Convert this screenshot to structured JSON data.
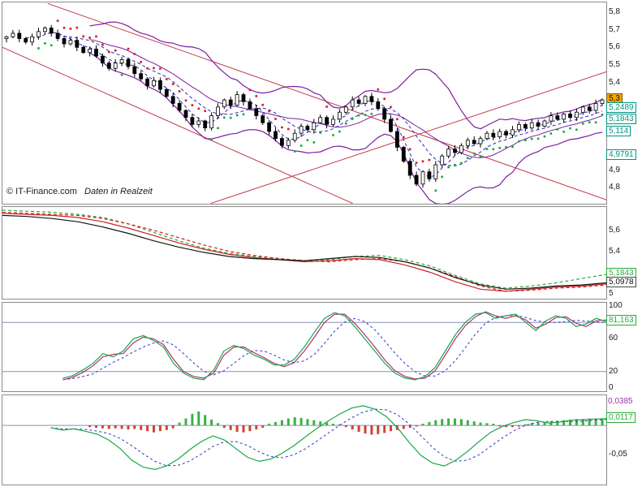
{
  "meta": {
    "copyright": "© IT-Finance.com",
    "realtime_note": "Daten in Realzeit"
  },
  "colors": {
    "grid": "#8890b8",
    "trend": "#c23b4b",
    "bollinger": "#7d1fa0",
    "ma_dash": "#2b2bb8",
    "sar_up": "#17a82f",
    "sar_down": "#e01717",
    "p2_red": "#cc2222",
    "p2_green": "#2aaa3a",
    "p2_black": "#151515",
    "stoch_green": "#17a84a",
    "stoch_purple": "#b23070",
    "signal": "#3535c8",
    "macd_line": "#17a84a",
    "hist_pos": "#3cb043",
    "hist_neg": "#cc4433",
    "box_teal": "#009482",
    "box_orange": "#f5a800",
    "box_green": "#2aaa3a",
    "purple_text": "#9b30b0"
  },
  "chart_data": [
    {
      "panel": "price",
      "type": "candlestick",
      "ylim": [
        4.708,
        5.856
      ],
      "yticks": [
        {
          "v": 5.8,
          "label": "5,8"
        },
        {
          "v": 5.7,
          "label": "5,7"
        },
        {
          "v": 5.6,
          "label": "5,6"
        },
        {
          "v": 5.5,
          "label": "5,5"
        },
        {
          "v": 5.4,
          "label": "5,4"
        },
        {
          "v": 4.9,
          "label": "4,9"
        },
        {
          "v": 4.8,
          "label": "4,8"
        }
      ],
      "boxed_labels": [
        {
          "v": 5.3,
          "label": "5,3",
          "style": "price"
        },
        {
          "v": 5.2489,
          "label": "5,2489",
          "style": "teal"
        },
        {
          "v": 5.1843,
          "label": "5,1843",
          "style": "teal"
        },
        {
          "v": 5.114,
          "label": "5,114",
          "style": "teal"
        },
        {
          "v": 4.9791,
          "label": "4,9791",
          "style": "teal"
        }
      ],
      "close": [
        5.66,
        5.68,
        5.65,
        5.63,
        5.66,
        5.69,
        5.71,
        5.68,
        5.65,
        5.62,
        5.64,
        5.6,
        5.57,
        5.59,
        5.55,
        5.51,
        5.48,
        5.51,
        5.53,
        5.49,
        5.45,
        5.42,
        5.38,
        5.41,
        5.36,
        5.32,
        5.28,
        5.24,
        5.2,
        5.16,
        5.18,
        5.14,
        5.21,
        5.26,
        5.3,
        5.27,
        5.33,
        5.29,
        5.25,
        5.21,
        5.17,
        5.12,
        5.08,
        5.04,
        5.07,
        5.11,
        5.15,
        5.13,
        5.17,
        5.2,
        5.16,
        5.19,
        5.23,
        5.26,
        5.3,
        5.28,
        5.32,
        5.29,
        5.25,
        5.19,
        5.12,
        5.03,
        4.95,
        4.87,
        4.82,
        4.89,
        4.85,
        4.93,
        4.98,
        5.02,
        5.0,
        5.04,
        5.07,
        5.05,
        5.08,
        5.11,
        5.09,
        5.12,
        5.1,
        5.13,
        5.16,
        5.14,
        5.17,
        5.15,
        5.18,
        5.21,
        5.19,
        5.22,
        5.2,
        5.23,
        5.26,
        5.24,
        5.28,
        5.3
      ],
      "indicators": {
        "bollinger_period": 14,
        "bollinger_mult": 2,
        "ma_dashed_periods": [
          4,
          9
        ],
        "parabolic_sar": true
      },
      "trend_lines": [
        {
          "f0": 0.075,
          "p0": 5.85,
          "f1": 1.0,
          "p1": 4.73
        },
        {
          "f0": 0.0,
          "p0": 5.6,
          "f1": 0.58,
          "p1": 4.71
        },
        {
          "f0": 0.345,
          "p0": 4.71,
          "f1": 1.0,
          "p1": 5.46
        }
      ]
    },
    {
      "panel": "weekly",
      "type": "line",
      "ylim": [
        4.95,
        5.82
      ],
      "yticks": [
        {
          "v": 5.6,
          "label": "5,6"
        },
        {
          "v": 5.4,
          "label": "5,4"
        },
        {
          "v": 5.0,
          "label": "5"
        }
      ],
      "boxed_labels": [
        {
          "v": 5.1843,
          "label": "5,1843",
          "style": "green"
        },
        {
          "v": 5.0978,
          "label": "5,0978",
          "style": "dark"
        }
      ],
      "series": [
        {
          "name": "weekly-green-dashed",
          "color": "p2_green",
          "dash": true,
          "values": [
            5.79,
            5.78,
            5.77,
            5.75,
            5.72,
            5.66,
            5.58,
            5.5,
            5.43,
            5.38,
            5.35,
            5.33,
            5.31,
            5.32,
            5.35,
            5.36,
            5.32,
            5.26,
            5.17,
            5.09,
            5.05,
            5.07,
            5.1,
            5.14,
            5.18
          ]
        },
        {
          "name": "weekly-red-dashed",
          "color": "p2_red",
          "dash": true,
          "values": [
            5.77,
            5.76,
            5.75,
            5.74,
            5.71,
            5.66,
            5.6,
            5.53,
            5.46,
            5.4,
            5.36,
            5.33,
            5.31,
            5.3,
            5.32,
            5.33,
            5.3,
            5.24,
            5.16,
            5.07,
            5.02,
            5.03,
            5.05,
            5.06,
            5.08
          ]
        },
        {
          "name": "weekly-red",
          "color": "p2_red",
          "values": [
            5.76,
            5.75,
            5.74,
            5.72,
            5.68,
            5.62,
            5.55,
            5.48,
            5.42,
            5.37,
            5.34,
            5.32,
            5.3,
            5.31,
            5.33,
            5.32,
            5.27,
            5.2,
            5.11,
            5.04,
            5.02,
            5.04,
            5.06,
            5.07,
            5.09
          ]
        },
        {
          "name": "weekly-black",
          "color": "p2_black",
          "values": [
            5.74,
            5.73,
            5.71,
            5.68,
            5.63,
            5.57,
            5.5,
            5.44,
            5.39,
            5.35,
            5.33,
            5.32,
            5.31,
            5.33,
            5.35,
            5.34,
            5.3,
            5.24,
            5.15,
            5.08,
            5.04,
            5.05,
            5.07,
            5.08,
            5.1
          ]
        }
      ]
    },
    {
      "panel": "stochastic",
      "type": "line",
      "ylim": [
        -4,
        104
      ],
      "gridlines": [
        80,
        20
      ],
      "yticks": [
        {
          "v": 100,
          "label": "100"
        },
        {
          "v": 60,
          "label": "60"
        },
        {
          "v": 20,
          "label": "20"
        },
        {
          "v": 0,
          "label": "0"
        }
      ],
      "boxed_labels": [
        {
          "v": 81.163,
          "label": "81,163",
          "style": "green"
        }
      ],
      "series": [
        {
          "name": "stoch-purple",
          "color": "stoch_purple",
          "span": [
            0.1,
            1
          ],
          "signal": true,
          "values": [
            10,
            13,
            19,
            27,
            38,
            41,
            42,
            55,
            62,
            60,
            53,
            35,
            20,
            14,
            12,
            18,
            40,
            50,
            50,
            43,
            37,
            30,
            26,
            31,
            45,
            62,
            80,
            90,
            90,
            79,
            65,
            50,
            34,
            21,
            14,
            11,
            12,
            21,
            40,
            60,
            76,
            87,
            93,
            88,
            85,
            88,
            83,
            73,
            78,
            86,
            87,
            79,
            75,
            82,
            83
          ]
        },
        {
          "name": "stoch-green",
          "color": "stoch_green",
          "span": [
            0.1,
            1
          ],
          "values": [
            12,
            15,
            22,
            30,
            42,
            38,
            45,
            60,
            64,
            58,
            50,
            30,
            18,
            12,
            10,
            22,
            45,
            52,
            48,
            40,
            35,
            28,
            28,
            35,
            50,
            68,
            85,
            92,
            88,
            75,
            60,
            45,
            30,
            18,
            12,
            10,
            14,
            25,
            45,
            65,
            80,
            90,
            92,
            85,
            88,
            90,
            80,
            70,
            82,
            88,
            85,
            75,
            78,
            85,
            81
          ]
        }
      ]
    },
    {
      "panel": "macd",
      "type": "bar",
      "ylim": [
        -0.102,
        0.052
      ],
      "gridlines": [
        0
      ],
      "yticks": [
        {
          "v": -0.05,
          "label": "-0,05"
        }
      ],
      "boxed_labels": [
        {
          "v": 0.0385,
          "label": "0,0385",
          "style": "purple_text"
        },
        {
          "v": 0.0117,
          "label": "0,0117",
          "style": "green"
        }
      ],
      "hist": [
        0,
        0,
        0,
        0,
        0,
        0,
        0,
        0,
        0,
        0,
        0,
        0,
        0,
        -0.003,
        -0.004,
        -0.005,
        -0.006,
        -0.005,
        -0.006,
        -0.007,
        -0.006,
        -0.008,
        -0.01,
        -0.012,
        -0.01,
        -0.008,
        -0.005,
        0.005,
        0.012,
        0.02,
        0.024,
        0.018,
        0.01,
        0.004,
        -0.004,
        -0.008,
        -0.011,
        -0.012,
        -0.01,
        -0.007,
        -0.004,
        0.003,
        0.006,
        0.009,
        0.012,
        0.014,
        0.013,
        0.011,
        0.009,
        0.007,
        0.005,
        0.003,
        0.002,
        -0.003,
        -0.007,
        -0.011,
        -0.014,
        -0.016,
        -0.015,
        -0.013,
        -0.01,
        -0.008,
        -0.006,
        -0.004,
        -0.002,
        0.003,
        0.006,
        0.009,
        0.011,
        0.012,
        0.012,
        0.011,
        0.009,
        0.007,
        0.005,
        0.004,
        0.003,
        -0.002,
        -0.003,
        -0.003,
        -0.002,
        0.002,
        0.004,
        0.005,
        0.006,
        0.007,
        0.008,
        0.009,
        0.01,
        0.011,
        0.011,
        0.012,
        0.012,
        0.0117
      ],
      "series": [
        {
          "name": "macd-line",
          "color": "macd_line",
          "span": [
            0.08,
            1
          ],
          "signal": true,
          "values": [
            -0.004,
            -0.008,
            -0.006,
            -0.01,
            -0.015,
            -0.025,
            -0.04,
            -0.06,
            -0.072,
            -0.076,
            -0.07,
            -0.058,
            -0.042,
            -0.028,
            -0.018,
            -0.025,
            -0.04,
            -0.055,
            -0.062,
            -0.058,
            -0.048,
            -0.035,
            -0.02,
            -0.005,
            0.008,
            0.02,
            0.03,
            0.034,
            0.028,
            0.015,
            -0.005,
            -0.03,
            -0.052,
            -0.065,
            -0.07,
            -0.06,
            -0.045,
            -0.028,
            -0.012,
            -0.002,
            0.005,
            0.01,
            0.008,
            0.004,
            0.006,
            0.009,
            0.01,
            0.011,
            0.0117
          ]
        }
      ]
    }
  ]
}
